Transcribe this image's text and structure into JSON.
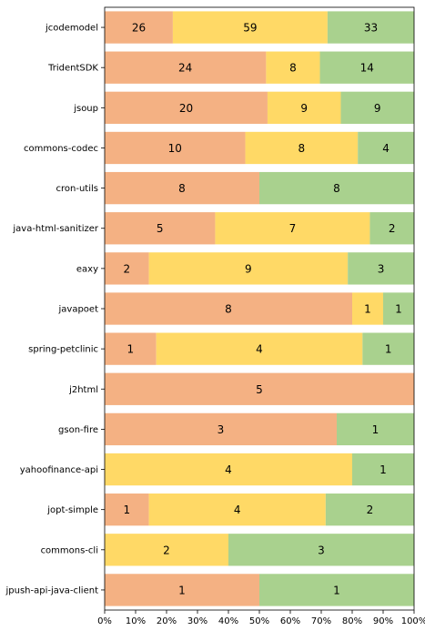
{
  "chart_data": {
    "type": "bar",
    "orientation": "horizontal",
    "stacked": "percent",
    "title": "",
    "xlabel": "",
    "ylabel": "",
    "xlim": [
      0,
      100
    ],
    "xticks": [
      "0%",
      "10%",
      "20%",
      "30%",
      "40%",
      "50%",
      "60%",
      "70%",
      "80%",
      "90%",
      "100%"
    ],
    "grid": false,
    "legend": "none",
    "categories": [
      "jcodemodel",
      "TridentSDK",
      "jsoup",
      "commons-codec",
      "cron-utils",
      "java-html-sanitizer",
      "eaxy",
      "javapoet",
      "spring-petclinic",
      "j2html",
      "gson-fire",
      "yahoofinance-api",
      "jopt-simple",
      "commons-cli",
      "jpush-api-java-client"
    ],
    "series": [
      {
        "color": "#f4b183",
        "values": [
          26,
          24,
          20,
          10,
          8,
          5,
          2,
          8,
          1,
          5,
          3,
          0,
          1,
          0,
          1
        ]
      },
      {
        "color": "#ffd966",
        "values": [
          59,
          8,
          9,
          8,
          0,
          7,
          9,
          1,
          4,
          0,
          0,
          4,
          4,
          2,
          0
        ]
      },
      {
        "color": "#a9d18e",
        "values": [
          33,
          14,
          9,
          4,
          8,
          2,
          3,
          1,
          1,
          0,
          1,
          1,
          2,
          3,
          1
        ]
      }
    ]
  }
}
